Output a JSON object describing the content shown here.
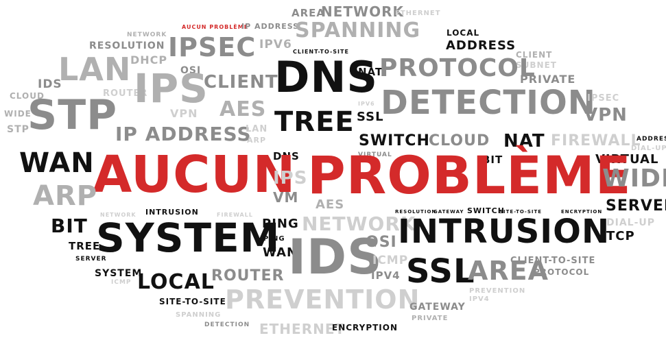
{
  "colors": {
    "black": "#111111",
    "red": "#d42a2a",
    "gray_dark": "#8c8c8c",
    "gray_mid": "#b0b0b0",
    "gray_light": "#cfcfcf",
    "background": "#ffffff"
  },
  "words": [
    "AUCUN",
    "PROBLÈME",
    "SYSTEM",
    "INTRUSION",
    "DNS",
    "DETECTION",
    "PROTOCOL",
    "SPANNING",
    "IPSEC",
    "LAN",
    "IPS",
    "STP",
    "IDS",
    "PREVENTION",
    "TREE",
    "WAN",
    "BiT",
    "LOCAL",
    "SSL",
    "AREA",
    "NETWORK",
    "IP ADDRESS",
    "CLIENT",
    "AES",
    "ROUTER",
    "ARP",
    "WiDE",
    "SERVER",
    "VPN",
    "FIREWALL",
    "CLOUD",
    "NAT",
    "SWITCH",
    "PiNG",
    "OSI",
    "ICMP",
    "IPV4",
    "IPV6",
    "TCP",
    "DIAL-UP",
    "VIRTUAL",
    "PRIVATE",
    "SUBNET",
    "GATEWAY",
    "ENCRYPTION",
    "ETHERNET",
    "RESOLUTION",
    "DHCP",
    "VM",
    "CLIENT-TO-SITE",
    "SITE-TO-SITE",
    "ADDRESS",
    "AUCUN PROBLÈME",
    "IP ADDRESS",
    "LOCAL ADDRESS"
  ],
  "cloud": [
    {
      "text": "AREA"
    },
    {
      "text": "NETWORK"
    },
    {
      "text": "ETHERNET"
    },
    {
      "text": "AUCUN PROBLÈME"
    },
    {
      "text": "IP ADDRESS"
    },
    {
      "text": "SPANNING"
    },
    {
      "text": "LOCAL"
    },
    {
      "text": "ADDRESS"
    },
    {
      "text": "NETWORK"
    },
    {
      "text": "RESOLUTION"
    },
    {
      "text": "IPSEC"
    },
    {
      "text": "IPV6"
    },
    {
      "text": "CLIENT-TO-SITE"
    },
    {
      "text": "CLIENT"
    },
    {
      "text": "SUBNET"
    },
    {
      "text": "DHCP"
    },
    {
      "text": "LAN"
    },
    {
      "text": "OSI"
    },
    {
      "text": "DNS"
    },
    {
      "text": "NAT"
    },
    {
      "text": "PROTOCOL"
    },
    {
      "text": "PRIVATE"
    },
    {
      "text": "IDS"
    },
    {
      "text": "ROUTER"
    },
    {
      "text": "IPS"
    },
    {
      "text": "CLIENT"
    },
    {
      "text": "CLOUD"
    },
    {
      "text": "WIDE"
    },
    {
      "text": "STP"
    },
    {
      "text": "VPN"
    },
    {
      "text": "AES"
    },
    {
      "text": "IPV6"
    },
    {
      "text": "DETECTION"
    },
    {
      "text": "IPSEC"
    },
    {
      "text": "VPN"
    },
    {
      "text": "STP"
    },
    {
      "text": "SSL"
    },
    {
      "text": "TREE"
    },
    {
      "text": "IP ADDRESS"
    },
    {
      "text": "LAN"
    },
    {
      "text": "ARP"
    },
    {
      "text": "SWITCH"
    },
    {
      "text": "CLOUD"
    },
    {
      "text": "NAT"
    },
    {
      "text": "FIREWALL"
    },
    {
      "text": "ADDRESS"
    },
    {
      "text": "DIAL-UP"
    },
    {
      "text": "WAN"
    },
    {
      "text": "DNS"
    },
    {
      "text": "VIRTUAL"
    },
    {
      "text": "BiT"
    },
    {
      "text": "VIRTUAL"
    },
    {
      "text": "AUCUN"
    },
    {
      "text": "PROBLÈME"
    },
    {
      "text": "IPS"
    },
    {
      "text": "WiDE"
    },
    {
      "text": "ARP"
    },
    {
      "text": "VM"
    },
    {
      "text": "AES"
    },
    {
      "text": "SERVER"
    },
    {
      "text": "NETWORK"
    },
    {
      "text": "FIREWALL"
    },
    {
      "text": "INTRUSION"
    },
    {
      "text": "RESOLUTION"
    },
    {
      "text": "GATEWAY"
    },
    {
      "text": "SWITCH"
    },
    {
      "text": "SITE-TO-SITE"
    },
    {
      "text": "ENCRYPTION"
    },
    {
      "text": "DIAL-UP"
    },
    {
      "text": "BiT"
    },
    {
      "text": "SYSTEM"
    },
    {
      "text": "PiNG"
    },
    {
      "text": "NETWORK"
    },
    {
      "text": "INTRUSION"
    },
    {
      "text": "TCP"
    },
    {
      "text": "PiNG"
    },
    {
      "text": "OSI"
    },
    {
      "text": "TREE"
    },
    {
      "text": "WAN"
    },
    {
      "text": "IDS"
    },
    {
      "text": "SERVER"
    },
    {
      "text": "ICMP"
    },
    {
      "text": "CLIENT-TO-SITE"
    },
    {
      "text": "SYSTEM"
    },
    {
      "text": "SSL"
    },
    {
      "text": "AREA"
    },
    {
      "text": "ICMP"
    },
    {
      "text": "ROUTER"
    },
    {
      "text": "IPV4"
    },
    {
      "text": "PROTOCOL"
    },
    {
      "text": "LOCAL"
    },
    {
      "text": "SITE-TO-SITE"
    },
    {
      "text": "PREVENTION"
    },
    {
      "text": "PREVENTION"
    },
    {
      "text": "IPV4"
    },
    {
      "text": "GATEWAY"
    },
    {
      "text": "SPANNING"
    },
    {
      "text": "PRIVATE"
    },
    {
      "text": "DETECTION"
    },
    {
      "text": "ETHERNET"
    },
    {
      "text": "ENCRYPTION"
    }
  ]
}
